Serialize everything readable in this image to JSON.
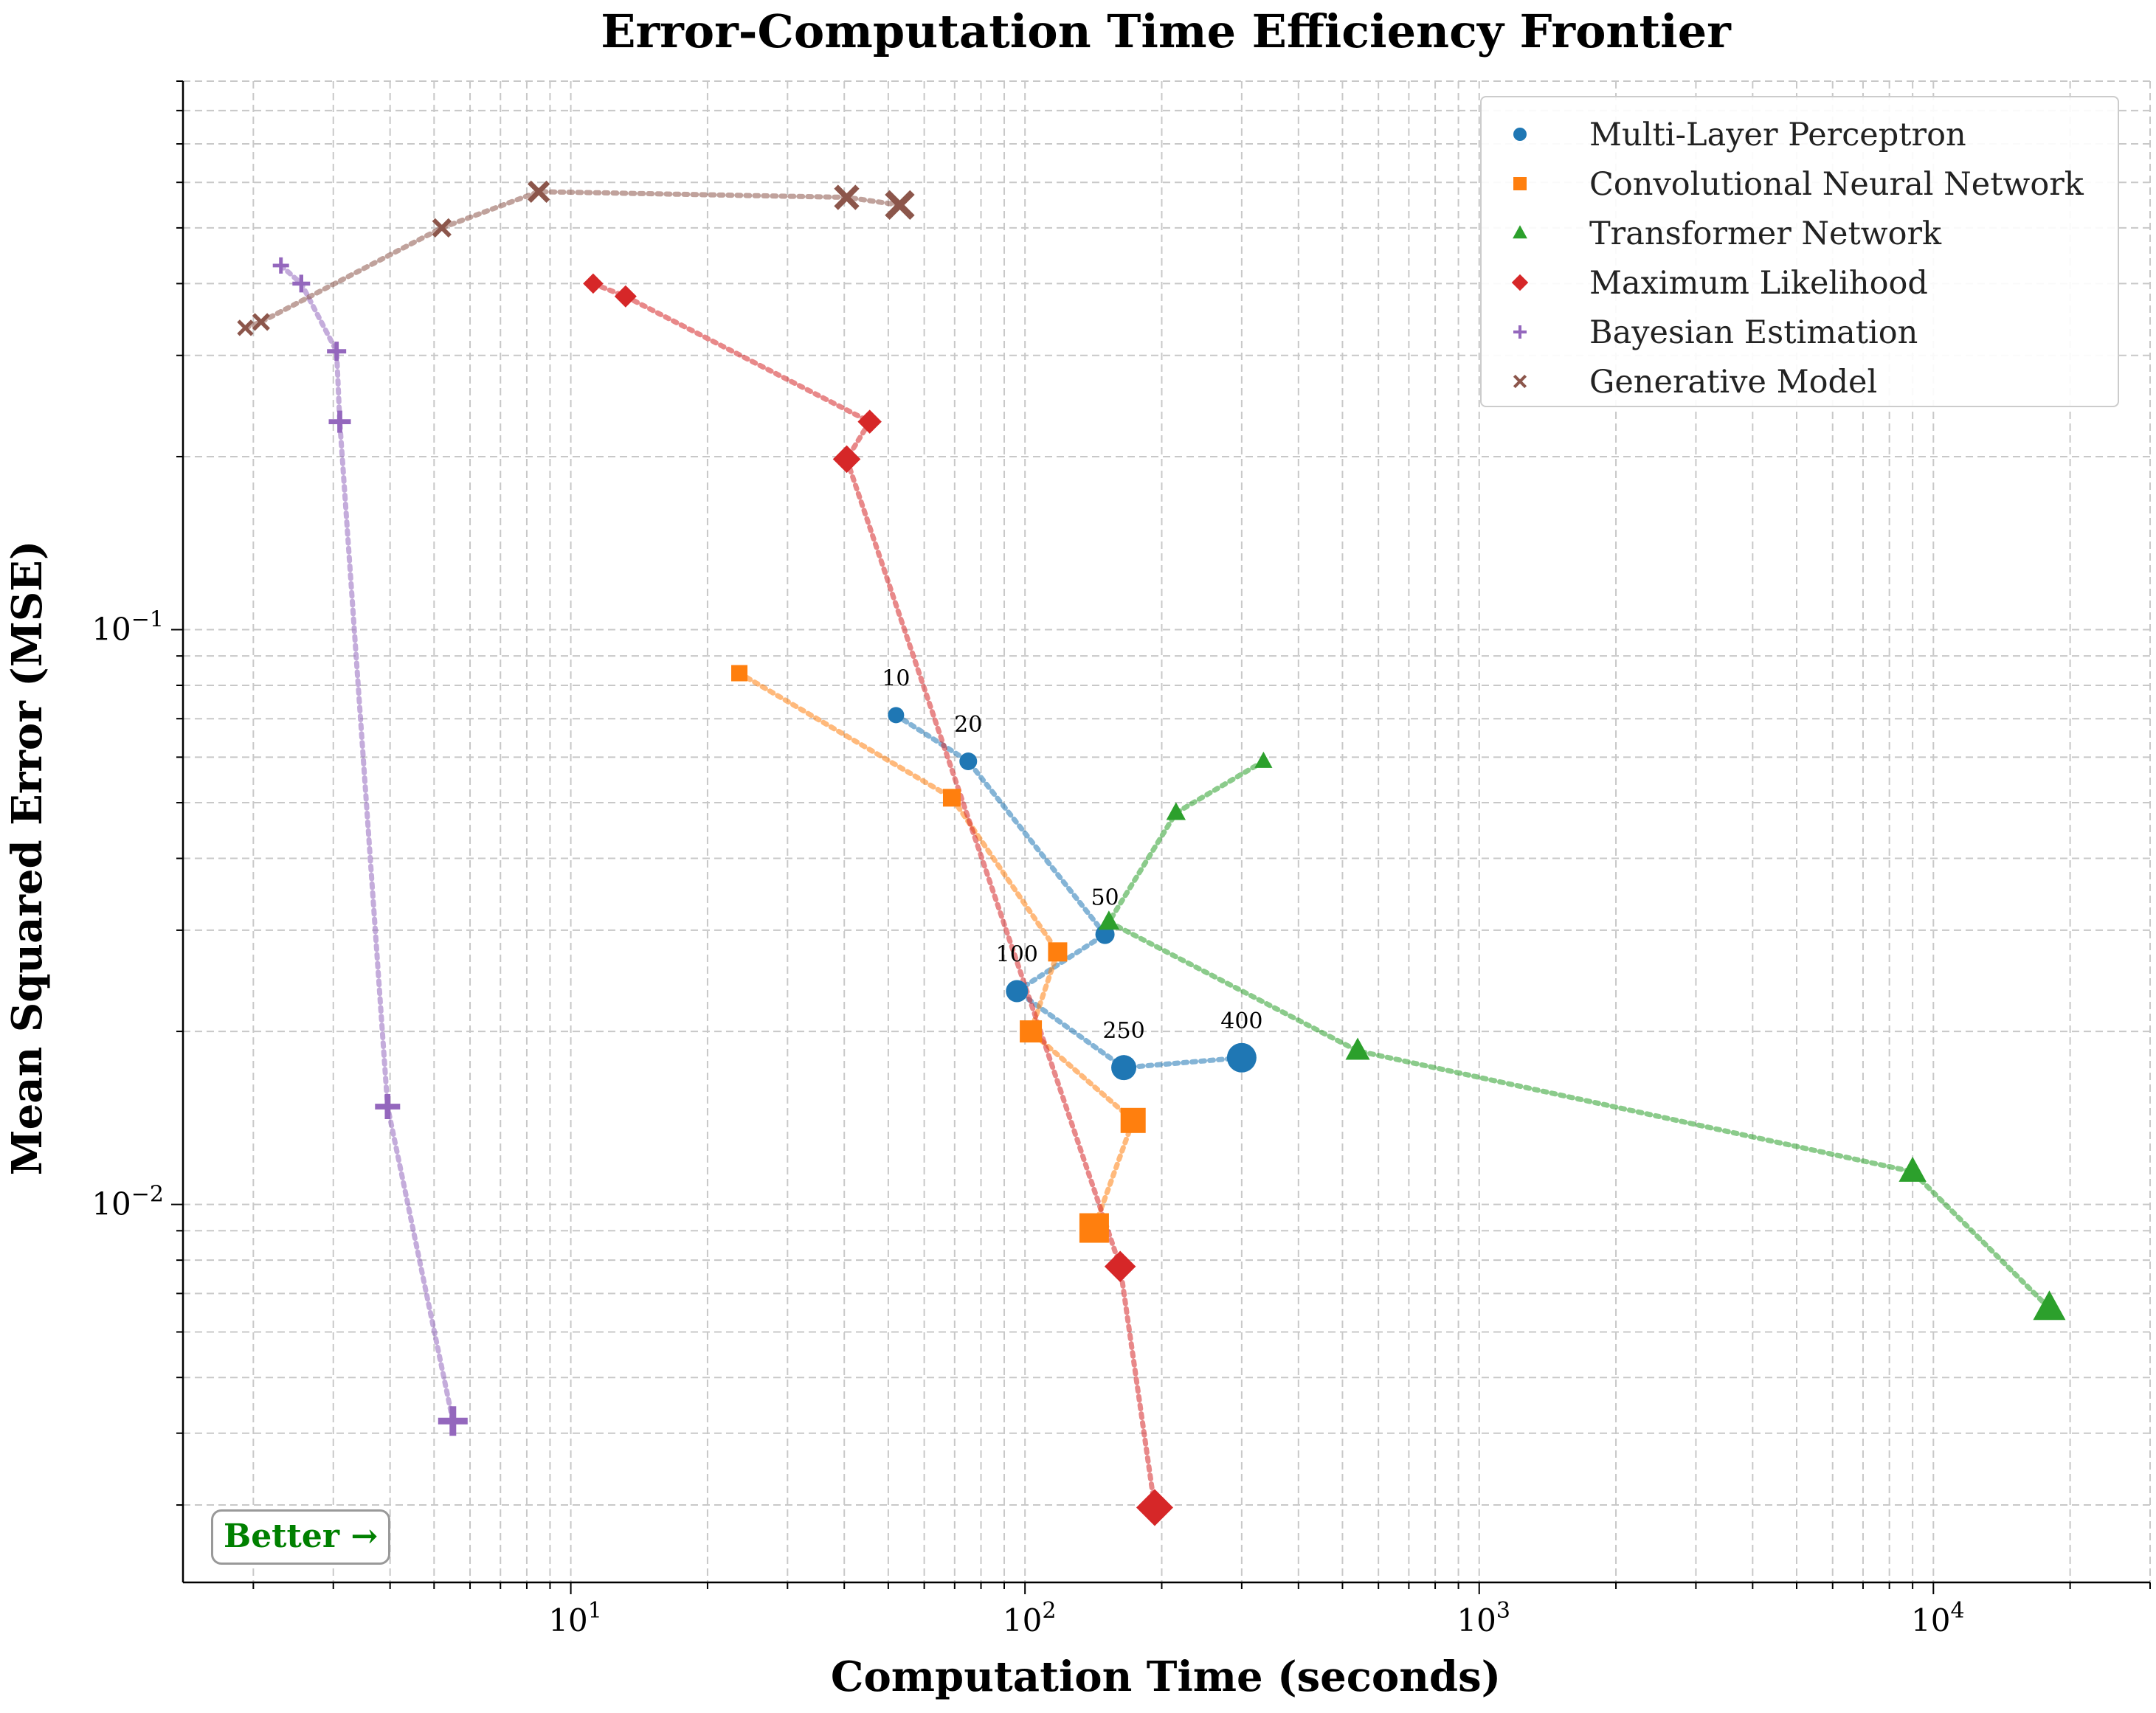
{
  "chart_data": {
    "type": "scatter",
    "title": "Error-Computation Time Efficiency Frontier",
    "xlabel": "Computation Time (seconds)",
    "ylabel": "Mean Squared Error (MSE)",
    "xscale": "log",
    "yscale": "log",
    "xlim": [
      1.4,
      30000
    ],
    "ylim": [
      0.0022,
      0.9
    ],
    "grid": "on (major and minor, dashed)",
    "legend_position": "top-right",
    "x_tick_labels": [
      "10^1",
      "10^2",
      "10^3",
      "10^4"
    ],
    "y_tick_labels": [
      "10^-2",
      "10^-1"
    ],
    "series": [
      {
        "name": "Multi-Layer Perceptron",
        "color": "#1f77b4",
        "marker": "circle",
        "points": [
          {
            "x": 52,
            "y": 0.071,
            "label": "10"
          },
          {
            "x": 75,
            "y": 0.059,
            "label": "20"
          },
          {
            "x": 150,
            "y": 0.0295,
            "label": "50"
          },
          {
            "x": 96,
            "y": 0.0235,
            "label": "100"
          },
          {
            "x": 165,
            "y": 0.0173,
            "label": "250"
          },
          {
            "x": 300,
            "y": 0.018,
            "label": "400"
          }
        ]
      },
      {
        "name": "Convolutional Neural Network",
        "color": "#ff7f0e",
        "marker": "square",
        "points": [
          {
            "x": 23.5,
            "y": 0.084
          },
          {
            "x": 69,
            "y": 0.051
          },
          {
            "x": 118,
            "y": 0.0275
          },
          {
            "x": 103,
            "y": 0.02
          },
          {
            "x": 173,
            "y": 0.014
          },
          {
            "x": 142,
            "y": 0.0091
          }
        ]
      },
      {
        "name": "Transformer Network",
        "color": "#2ca02c",
        "marker": "triangle",
        "points": [
          {
            "x": 335,
            "y": 0.059
          },
          {
            "x": 215,
            "y": 0.048
          },
          {
            "x": 153,
            "y": 0.031
          },
          {
            "x": 540,
            "y": 0.0185
          },
          {
            "x": 9000,
            "y": 0.0114
          },
          {
            "x": 18000,
            "y": 0.0066
          }
        ]
      },
      {
        "name": "Maximum Likelihood",
        "color": "#d62728",
        "marker": "diamond",
        "points": [
          {
            "x": 11.2,
            "y": 0.4
          },
          {
            "x": 13.2,
            "y": 0.38
          },
          {
            "x": 45.5,
            "y": 0.23
          },
          {
            "x": 40.5,
            "y": 0.198
          },
          {
            "x": 162,
            "y": 0.0078
          },
          {
            "x": 193,
            "y": 0.00297
          }
        ]
      },
      {
        "name": "Bayesian Estimation",
        "color": "#9467bd",
        "marker": "plus",
        "points": [
          {
            "x": 2.3,
            "y": 0.43
          },
          {
            "x": 2.55,
            "y": 0.4
          },
          {
            "x": 3.05,
            "y": 0.305
          },
          {
            "x": 3.1,
            "y": 0.23
          },
          {
            "x": 3.95,
            "y": 0.0148
          },
          {
            "x": 5.5,
            "y": 0.0042
          }
        ]
      },
      {
        "name": "Generative Model",
        "color": "#8c564b",
        "marker": "x",
        "points": [
          {
            "x": 1.92,
            "y": 0.335
          },
          {
            "x": 2.08,
            "y": 0.343
          },
          {
            "x": 5.2,
            "y": 0.5
          },
          {
            "x": 8.5,
            "y": 0.578
          },
          {
            "x": 40.5,
            "y": 0.565
          },
          {
            "x": 53,
            "y": 0.548
          }
        ]
      }
    ],
    "annotation": "Better →"
  }
}
